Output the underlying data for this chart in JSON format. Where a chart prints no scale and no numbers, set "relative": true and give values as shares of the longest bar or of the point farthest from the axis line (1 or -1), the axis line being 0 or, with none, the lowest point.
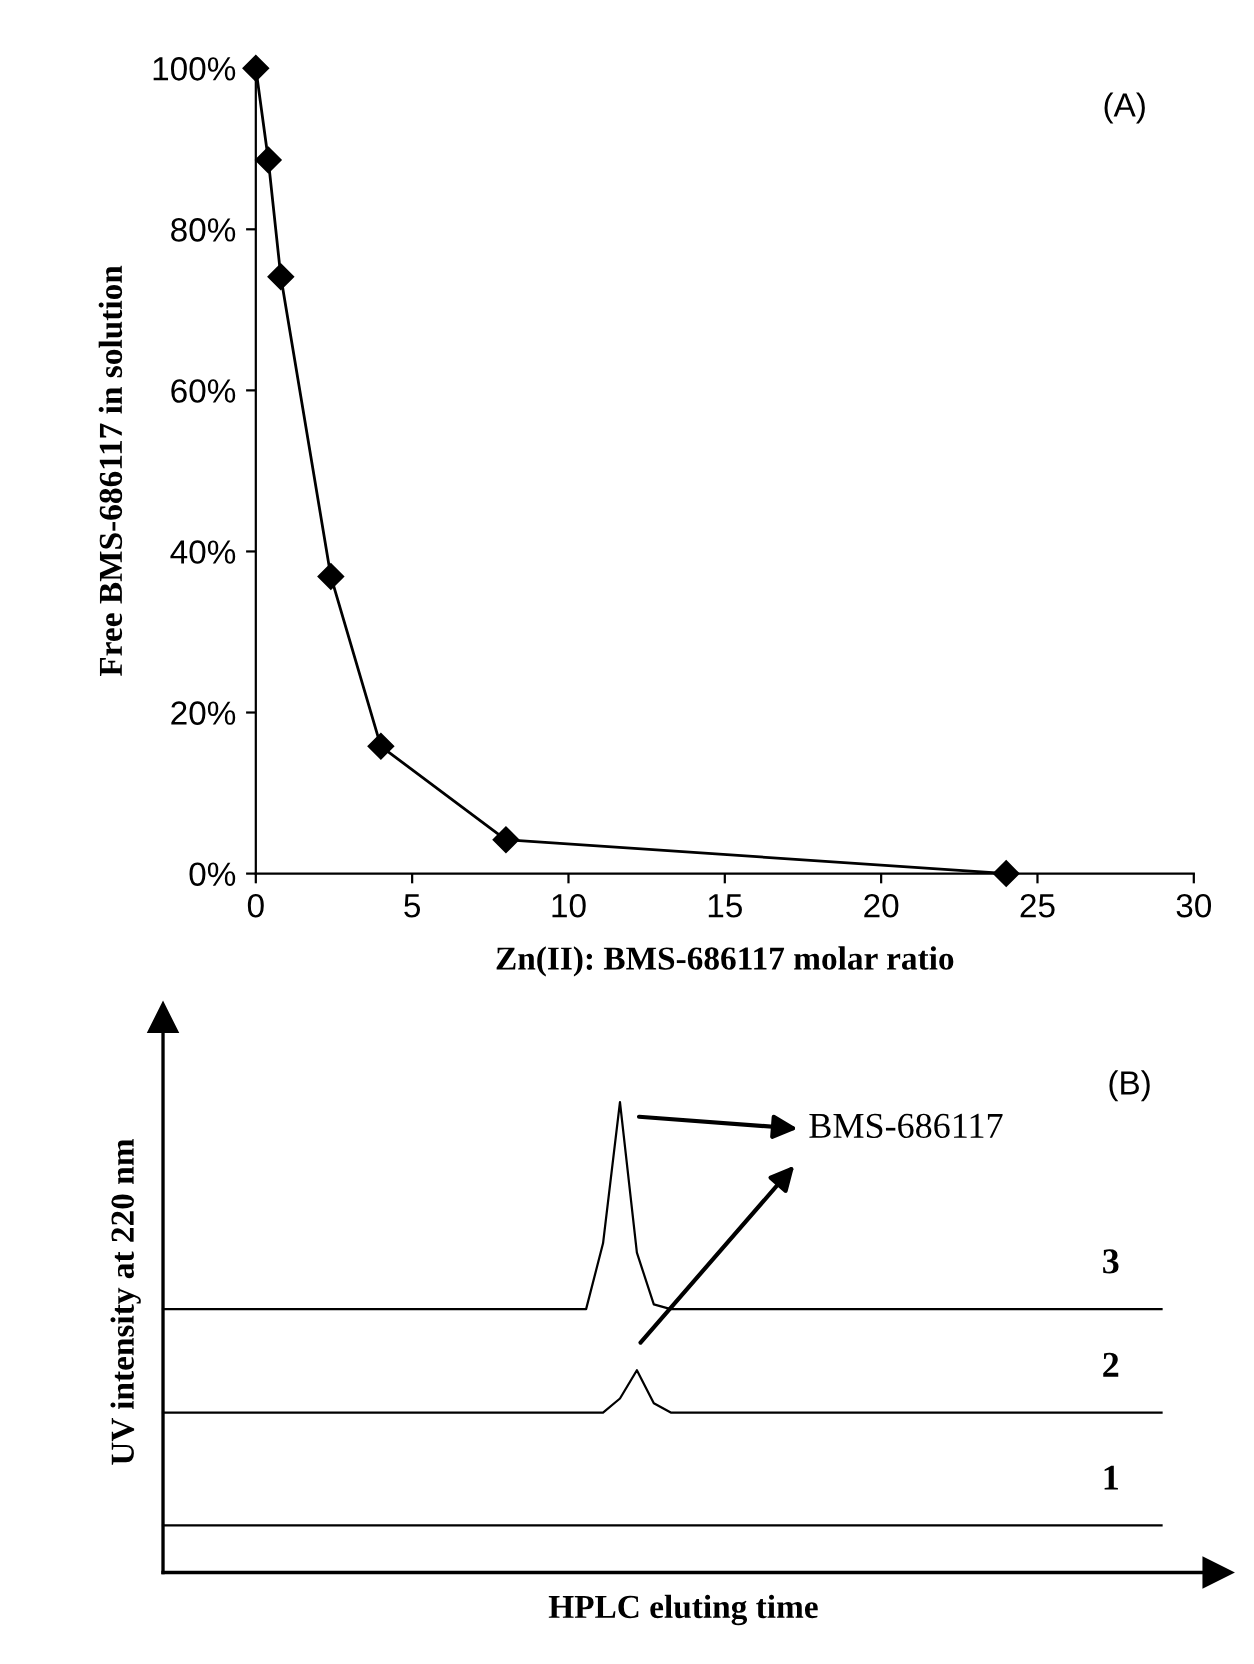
{
  "chart_data": [
    {
      "type": "line",
      "xlabel": "Zn(II): BMS-686117 molar ratio",
      "ylabel": "Free BMS-686117 in solution",
      "annotations": [
        "(A)"
      ],
      "x": [
        0,
        0.4,
        0.8,
        2.4,
        4,
        8,
        24
      ],
      "series": [
        {
          "color": "#000000",
          "values": [
            100,
            88.6,
            74.1,
            36.9,
            15.8,
            4.2,
            0
          ]
        }
      ],
      "xlim": [
        0,
        30
      ],
      "xticks": [
        0,
        5,
        10,
        15,
        20,
        25,
        30
      ],
      "ylim": [
        0,
        100
      ],
      "yticks": [
        {
          "value": 0,
          "label": "0%"
        },
        {
          "value": 20,
          "label": "20%"
        },
        {
          "value": 40,
          "label": "40%"
        },
        {
          "value": 60,
          "label": "60%"
        },
        {
          "value": 80,
          "label": "80%"
        },
        {
          "value": 100,
          "label": "100%"
        }
      ],
      "marker": "diamond",
      "line_style": "solid",
      "grid": false,
      "legend": false
    },
    {
      "type": "line",
      "relative": true,
      "xlabel": "HPLC eluting time",
      "ylabel": "UV intensity at 220 nm",
      "annotations": [
        "(B)",
        "BMS-686117"
      ],
      "categories": [
        null,
        null,
        null,
        null,
        null,
        null,
        null,
        null,
        null,
        null,
        null,
        null,
        null,
        null,
        null,
        null,
        null,
        null,
        null,
        null,
        null,
        null,
        null,
        null,
        null,
        null,
        null,
        null,
        null,
        null,
        null,
        null,
        null,
        null,
        null,
        null,
        null,
        null,
        null,
        null,
        null,
        null,
        null,
        null,
        null,
        null,
        null,
        null,
        null,
        null,
        null,
        null,
        null,
        null,
        null,
        null,
        null,
        null,
        null,
        null
      ],
      "series": [
        {
          "name": "3",
          "color": "#000000",
          "values": [
            0.56,
            0.56,
            0.56,
            0.56,
            0.56,
            0.56,
            0.56,
            0.56,
            0.56,
            0.56,
            0.56,
            0.56,
            0.56,
            0.56,
            0.56,
            0.56,
            0.56,
            0.56,
            0.56,
            0.56,
            0.56,
            0.56,
            0.56,
            0.56,
            0.56,
            0.56,
            0.7,
            1.0,
            0.68,
            0.57,
            0.56,
            0.56,
            0.56,
            0.56,
            0.56,
            0.56,
            0.56,
            0.56,
            0.56,
            0.56,
            0.56,
            0.56,
            0.56,
            0.56,
            0.56,
            0.56,
            0.56,
            0.56,
            0.56,
            0.56,
            0.56,
            0.56,
            0.56,
            0.56,
            0.56,
            0.56,
            0.56,
            0.56,
            0.56,
            0.56
          ]
        },
        {
          "name": "2",
          "color": "#000000",
          "values": [
            0.34,
            0.34,
            0.34,
            0.34,
            0.34,
            0.34,
            0.34,
            0.34,
            0.34,
            0.34,
            0.34,
            0.34,
            0.34,
            0.34,
            0.34,
            0.34,
            0.34,
            0.34,
            0.34,
            0.34,
            0.34,
            0.34,
            0.34,
            0.34,
            0.34,
            0.34,
            0.34,
            0.37,
            0.43,
            0.36,
            0.34,
            0.34,
            0.34,
            0.34,
            0.34,
            0.34,
            0.34,
            0.34,
            0.34,
            0.34,
            0.34,
            0.34,
            0.34,
            0.34,
            0.34,
            0.34,
            0.34,
            0.34,
            0.34,
            0.34,
            0.34,
            0.34,
            0.34,
            0.34,
            0.34,
            0.34,
            0.34,
            0.34,
            0.34,
            0.34
          ]
        },
        {
          "name": "1",
          "color": "#000000",
          "values": [
            0.1,
            0.1,
            0.1,
            0.1,
            0.1,
            0.1,
            0.1,
            0.1,
            0.1,
            0.1,
            0.1,
            0.1,
            0.1,
            0.1,
            0.1,
            0.1,
            0.1,
            0.1,
            0.1,
            0.1,
            0.1,
            0.1,
            0.1,
            0.1,
            0.1,
            0.1,
            0.1,
            0.1,
            0.1,
            0.1,
            0.1,
            0.1,
            0.1,
            0.1,
            0.1,
            0.1,
            0.1,
            0.1,
            0.1,
            0.1,
            0.1,
            0.1,
            0.1,
            0.1,
            0.1,
            0.1,
            0.1,
            0.1,
            0.1,
            0.1,
            0.1,
            0.1,
            0.1,
            0.1,
            0.1,
            0.1,
            0.1,
            0.1,
            0.1,
            0.1
          ]
        }
      ],
      "tick_labels": false,
      "marker": "none",
      "line_style": "solid",
      "grid": false,
      "legend": false
    }
  ]
}
